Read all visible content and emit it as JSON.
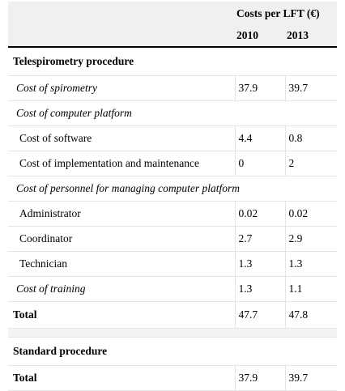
{
  "header": {
    "group_label": "Costs per LFT (€)",
    "years": [
      "2010",
      "2013"
    ]
  },
  "rows": [
    {
      "label": "Telespirometry procedure"
    },
    {
      "label": "Cost of spirometry",
      "v2010": "37.9",
      "v2013": "39.7"
    },
    {
      "label": "Cost of computer platform"
    },
    {
      "label": "Cost of software",
      "v2010": "4.4",
      "v2013": "0.8"
    },
    {
      "label": "Cost of implementation and maintenance",
      "v2010": "0",
      "v2013": "2"
    },
    {
      "label": "Cost of personnel for managing computer platform"
    },
    {
      "label": "Administrator",
      "v2010": "0.02",
      "v2013": "0.02"
    },
    {
      "label": "Coordinator",
      "v2010": "2.7",
      "v2013": "2.9"
    },
    {
      "label": "Technician",
      "v2010": "1.3",
      "v2013": "1.3"
    },
    {
      "label": "Cost of training",
      "v2010": "1.3",
      "v2013": "1.1"
    },
    {
      "label": "Total",
      "v2010": "47.7",
      "v2013": "47.8"
    },
    {
      "label": "Standard procedure"
    },
    {
      "label": "Total",
      "v2010": "37.9",
      "v2013": "39.7"
    }
  ]
}
